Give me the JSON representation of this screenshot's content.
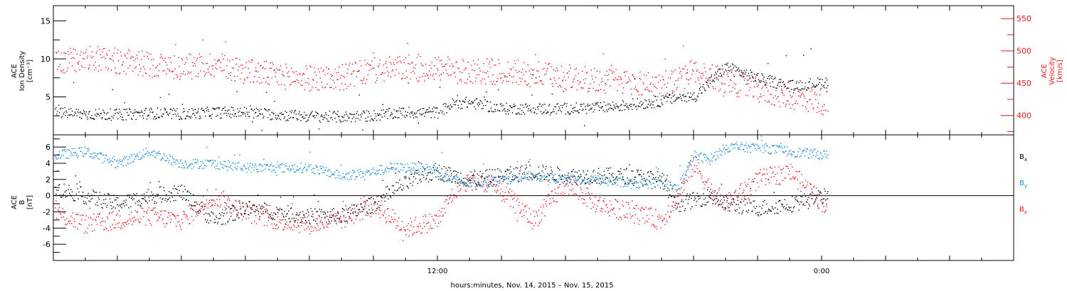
{
  "xlabel": "hours:minutes, Nov. 14, 2015 – Nov. 15, 2015",
  "x_ticks": [
    {
      "t": 12,
      "label": "12:00"
    },
    {
      "t": 24,
      "label": "0:00"
    }
  ],
  "x_range_hours": [
    0,
    30
  ],
  "data_end_hour": 24.2,
  "colors": {
    "black": "#000000",
    "red": "#e8141e",
    "blue": "#1a86d8"
  },
  "chart_data": [
    {
      "type": "scatter",
      "panel": "top",
      "ylabel_left": [
        "ACE",
        "Ion Density",
        "[cm⁻³]"
      ],
      "ylabel_right": [
        "ACE",
        "Velocity",
        "[km/s]"
      ],
      "ylim_left": [
        0,
        17
      ],
      "ylim_right": [
        370,
        570
      ],
      "left_ticks": [
        5,
        10,
        15
      ],
      "right_ticks": [
        400,
        450,
        500,
        550
      ],
      "series": [
        {
          "name": "",
          "axis": "left",
          "color": "#000000",
          "units": "cm^-3",
          "x": [
            0,
            1,
            2,
            3,
            4,
            5,
            6,
            7,
            8,
            9,
            10,
            10.5,
            11,
            11.5,
            12,
            12.5,
            13,
            14,
            15,
            16,
            17,
            18,
            19,
            19.5,
            20,
            20.5,
            21,
            22,
            23,
            24.2
          ],
          "y": [
            3,
            2.8,
            2.7,
            2.9,
            2.8,
            3,
            3,
            2.7,
            2.5,
            2.4,
            2.6,
            2.8,
            3,
            3,
            3,
            4.2,
            4.3,
            3.5,
            3.5,
            3.5,
            3.6,
            4,
            4.5,
            5,
            5,
            7,
            9,
            7.5,
            6.5,
            7
          ]
        },
        {
          "name": "",
          "axis": "right",
          "color": "#e8141e",
          "units": "km/s",
          "x": [
            0,
            1,
            2,
            3,
            4,
            5,
            6,
            7,
            8,
            9,
            10,
            10.5,
            11,
            11.5,
            12,
            12.5,
            13,
            14,
            15,
            16,
            17,
            18,
            19,
            19.5,
            20,
            20.5,
            21,
            22,
            23,
            24.2
          ],
          "y": [
            480,
            490,
            485,
            480,
            475,
            480,
            470,
            462,
            458,
            460,
            470,
            472,
            475,
            472,
            475,
            465,
            470,
            468,
            465,
            460,
            455,
            452,
            448,
            455,
            470,
            462,
            455,
            440,
            430,
            420
          ]
        }
      ]
    },
    {
      "type": "scatter",
      "panel": "bottom",
      "ylabel_left": [
        "ACE",
        "B",
        "[nT]"
      ],
      "ylim": [
        -8,
        7.5
      ],
      "ticks": [
        -6,
        -4,
        -2,
        0,
        2,
        4,
        6
      ],
      "zero_line": true,
      "series": [
        {
          "name": "Bx",
          "color": "#000000",
          "x": [
            0,
            1,
            2,
            3,
            4,
            5,
            6,
            7,
            8,
            9,
            10,
            10.5,
            11,
            11.5,
            12,
            12.5,
            13,
            14,
            15,
            16,
            17,
            18,
            19,
            19.5,
            20,
            20.5,
            21,
            22,
            23,
            24.2
          ],
          "y": [
            1,
            0,
            -1,
            0,
            0.5,
            -3,
            -1.5,
            -2,
            -2.5,
            -2.5,
            -1,
            0.5,
            1.5,
            2.5,
            3,
            2.5,
            2,
            2.5,
            3,
            2.5,
            2.5,
            2.5,
            2,
            -1,
            -0.5,
            0,
            -1,
            -1.5,
            -1,
            0
          ]
        },
        {
          "name": "By",
          "color": "#1a86d8",
          "x": [
            0,
            1,
            2,
            3,
            4,
            5,
            6,
            7,
            8,
            9,
            10,
            10.5,
            11,
            11.5,
            12,
            12.5,
            13,
            14,
            15,
            16,
            17,
            18,
            19,
            19.5,
            20,
            20.5,
            21,
            22,
            23,
            24.2
          ],
          "y": [
            5,
            5.5,
            4,
            5.5,
            4,
            4,
            3.5,
            3.5,
            3.5,
            2.5,
            3,
            3.5,
            3.5,
            3.5,
            3,
            2,
            1.5,
            2,
            2.5,
            2,
            2,
            1.5,
            1.5,
            1,
            5,
            4.5,
            6,
            6,
            5.5,
            5
          ]
        },
        {
          "name": "Bz",
          "color": "#e8141e",
          "x": [
            0,
            1,
            2,
            3,
            4,
            5,
            6,
            7,
            8,
            9,
            10,
            10.5,
            11,
            11.5,
            12,
            12.5,
            13,
            14,
            15,
            16,
            17,
            18,
            19,
            19.5,
            20,
            20.5,
            21,
            22,
            23,
            24.2
          ],
          "y": [
            -2,
            -3.5,
            -3,
            -2.5,
            -3,
            0,
            -2,
            -3,
            -3.5,
            -3,
            -1,
            -2.5,
            -4,
            -3.5,
            -3,
            0.5,
            2,
            0.5,
            -3,
            1.5,
            -1,
            -2,
            -3,
            0,
            4,
            1,
            -1,
            2,
            3,
            -1.5
          ]
        }
      ]
    }
  ]
}
